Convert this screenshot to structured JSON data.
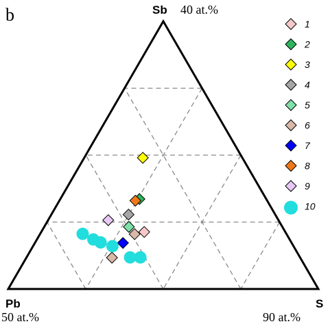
{
  "chart_data": {
    "type": "scatter",
    "coordinate_system": "ternary",
    "panel_label": "b",
    "vertices": {
      "top": {
        "element": "Sb",
        "range_label": "40 at.%"
      },
      "bottom_left": {
        "element": "Pb",
        "range_label": "50 at.%"
      },
      "bottom_right": {
        "element": "S",
        "range_label": "90 at.%"
      }
    },
    "grid": true,
    "legend_position": "right",
    "series": [
      {
        "name": "1",
        "marker": "diamond",
        "color": "#f5c9c9",
        "points": [
          {
            "a": 0.455,
            "b": 0.213
          }
        ]
      },
      {
        "name": "2",
        "marker": "diamond",
        "color": "#2db55d",
        "points": [
          {
            "a": 0.409,
            "b": 0.336
          }
        ]
      },
      {
        "name": "3",
        "marker": "diamond",
        "color": "#ffff00",
        "points": [
          {
            "a": 0.321,
            "b": 0.49
          }
        ]
      },
      {
        "name": "4",
        "marker": "diamond",
        "color": "#a6a6a6",
        "points": [
          {
            "a": 0.473,
            "b": 0.278
          }
        ]
      },
      {
        "name": "5",
        "marker": "diamond",
        "color": "#7fe0a8",
        "points": [
          {
            "a": 0.495,
            "b": 0.232
          }
        ]
      },
      {
        "name": "6",
        "marker": "diamond",
        "color": "#d9b8a8",
        "points": [
          {
            "a": 0.49,
            "b": 0.205
          },
          {
            "a": 0.607,
            "b": 0.117
          }
        ]
      },
      {
        "name": "7",
        "marker": "diamond",
        "color": "#0000ff",
        "points": [
          {
            "a": 0.544,
            "b": 0.172
          }
        ]
      },
      {
        "name": "8",
        "marker": "diamond",
        "color": "#f07818",
        "points": [
          {
            "a": 0.425,
            "b": 0.33
          }
        ]
      },
      {
        "name": "9",
        "marker": "diamond",
        "color": "#e8c8f4",
        "points": [
          {
            "a": 0.549,
            "b": 0.257
          }
        ]
      },
      {
        "name": "10",
        "marker": "circle",
        "color": "#22dddd",
        "points": [
          {
            "a": 0.657,
            "b": 0.206
          },
          {
            "a": 0.615,
            "b": 0.174
          },
          {
            "a": 0.584,
            "b": 0.16
          },
          {
            "a": 0.548,
            "b": 0.118
          },
          {
            "a": 0.515,
            "b": 0.118
          },
          {
            "a": 0.633,
            "b": 0.185
          }
        ]
      }
    ]
  }
}
